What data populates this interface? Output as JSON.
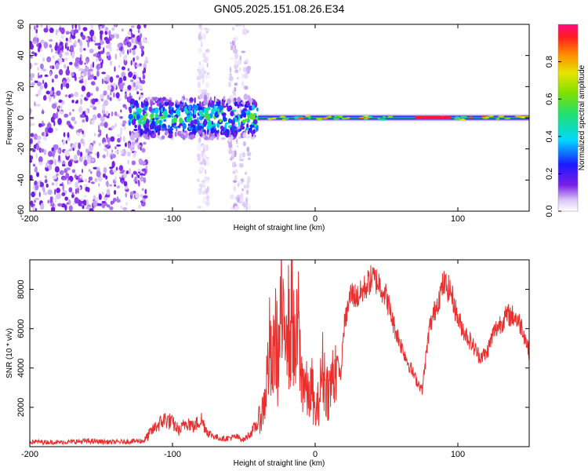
{
  "title": "GN05.2025.151.08.26.E34",
  "chart_data": [
    {
      "type": "heatmap",
      "xlabel": "Height of straight line (km)",
      "ylabel": "Frequency (Hz)",
      "xlim": [
        -200,
        150
      ],
      "ylim": [
        -60,
        60
      ],
      "xticks": [
        "-200",
        "-100",
        "0",
        "100"
      ],
      "xtick_values": [
        -200,
        -100,
        0,
        100
      ],
      "yticks": [
        "-60",
        "-40",
        "-20",
        "0",
        "20",
        "40",
        "60"
      ],
      "ytick_values": [
        -60,
        -40,
        -20,
        0,
        20,
        40,
        60
      ],
      "colorbar": {
        "label": "Normalized spectral amplitude",
        "range": [
          0.0,
          1.0
        ],
        "ticks": [
          "0.0",
          "0.2",
          "0.4",
          "0.6",
          "0.8"
        ],
        "tick_values": [
          0.0,
          0.2,
          0.4,
          0.6,
          0.8
        ]
      },
      "regions": [
        {
          "x_range": [
            -200,
            -118
          ],
          "freq_range": [
            -60,
            60
          ],
          "amplitude": 0.08,
          "description": "broadband noise"
        },
        {
          "x_range": [
            -82,
            -75
          ],
          "freq_range": [
            -60,
            60
          ],
          "amplitude": 0.03
        },
        {
          "x_range": [
            -60,
            -46
          ],
          "freq_range": [
            -60,
            60
          ],
          "amplitude": 0.04
        },
        {
          "x_range": [
            -130,
            -40
          ],
          "freq_range": [
            -15,
            15
          ],
          "amplitude": 0.3
        },
        {
          "x_range": [
            -40,
            150
          ],
          "freq_range": [
            -3,
            3
          ],
          "amplitude": 0.55
        },
        {
          "x_range": [
            70,
            95
          ],
          "freq_range": [
            -1,
            1
          ],
          "amplitude": 0.95
        }
      ]
    },
    {
      "type": "line",
      "xlabel": "Height of straight line (km)",
      "ylabel": "SNR (10 * v/v)",
      "xlim": [
        -200,
        150
      ],
      "ylim": [
        0,
        9500
      ],
      "xticks": [
        "-200",
        "-100",
        "0",
        "100"
      ],
      "xtick_values": [
        -200,
        -100,
        0,
        100
      ],
      "yticks": [
        "2000",
        "4000",
        "6000",
        "8000"
      ],
      "ytick_values": [
        2000,
        4000,
        6000,
        8000
      ],
      "color": "#e8302e",
      "series": [
        {
          "x": [
            -200,
            -180,
            -160,
            -140,
            -120,
            -112,
            -105,
            -100,
            -95,
            -90,
            -85,
            -80,
            -75,
            -70,
            -65,
            -60,
            -55,
            -50,
            -45,
            -40,
            -37,
            -35,
            -32,
            -30,
            -28,
            -26,
            -24,
            -22,
            -20,
            -18,
            -16,
            -14,
            -12,
            -10,
            -8,
            -5,
            -2,
            0,
            3,
            5,
            8,
            10,
            13,
            15,
            18,
            20,
            25,
            30,
            35,
            40,
            45,
            50,
            55,
            60,
            65,
            70,
            75,
            80,
            85,
            90,
            95,
            100,
            105,
            110,
            115,
            120,
            125,
            130,
            135,
            140,
            145,
            150
          ],
          "y": [
            250,
            220,
            280,
            230,
            300,
            1000,
            1400,
            1200,
            800,
            1300,
            1000,
            1400,
            700,
            500,
            400,
            450,
            500,
            350,
            700,
            1200,
            1800,
            2500,
            5000,
            3500,
            6000,
            4200,
            7000,
            5200,
            8200,
            5000,
            7500,
            4000,
            6500,
            3500,
            3500,
            2500,
            3000,
            1500,
            2500,
            4000,
            3000,
            2800,
            3800,
            4500,
            3500,
            6000,
            7800,
            7600,
            8100,
            8600,
            8300,
            7600,
            6200,
            5200,
            4300,
            3500,
            2900,
            6000,
            7200,
            8300,
            7900,
            6500,
            5800,
            5200,
            4600,
            4700,
            5800,
            6300,
            6700,
            6600,
            6100,
            4800
          ]
        }
      ]
    }
  ]
}
